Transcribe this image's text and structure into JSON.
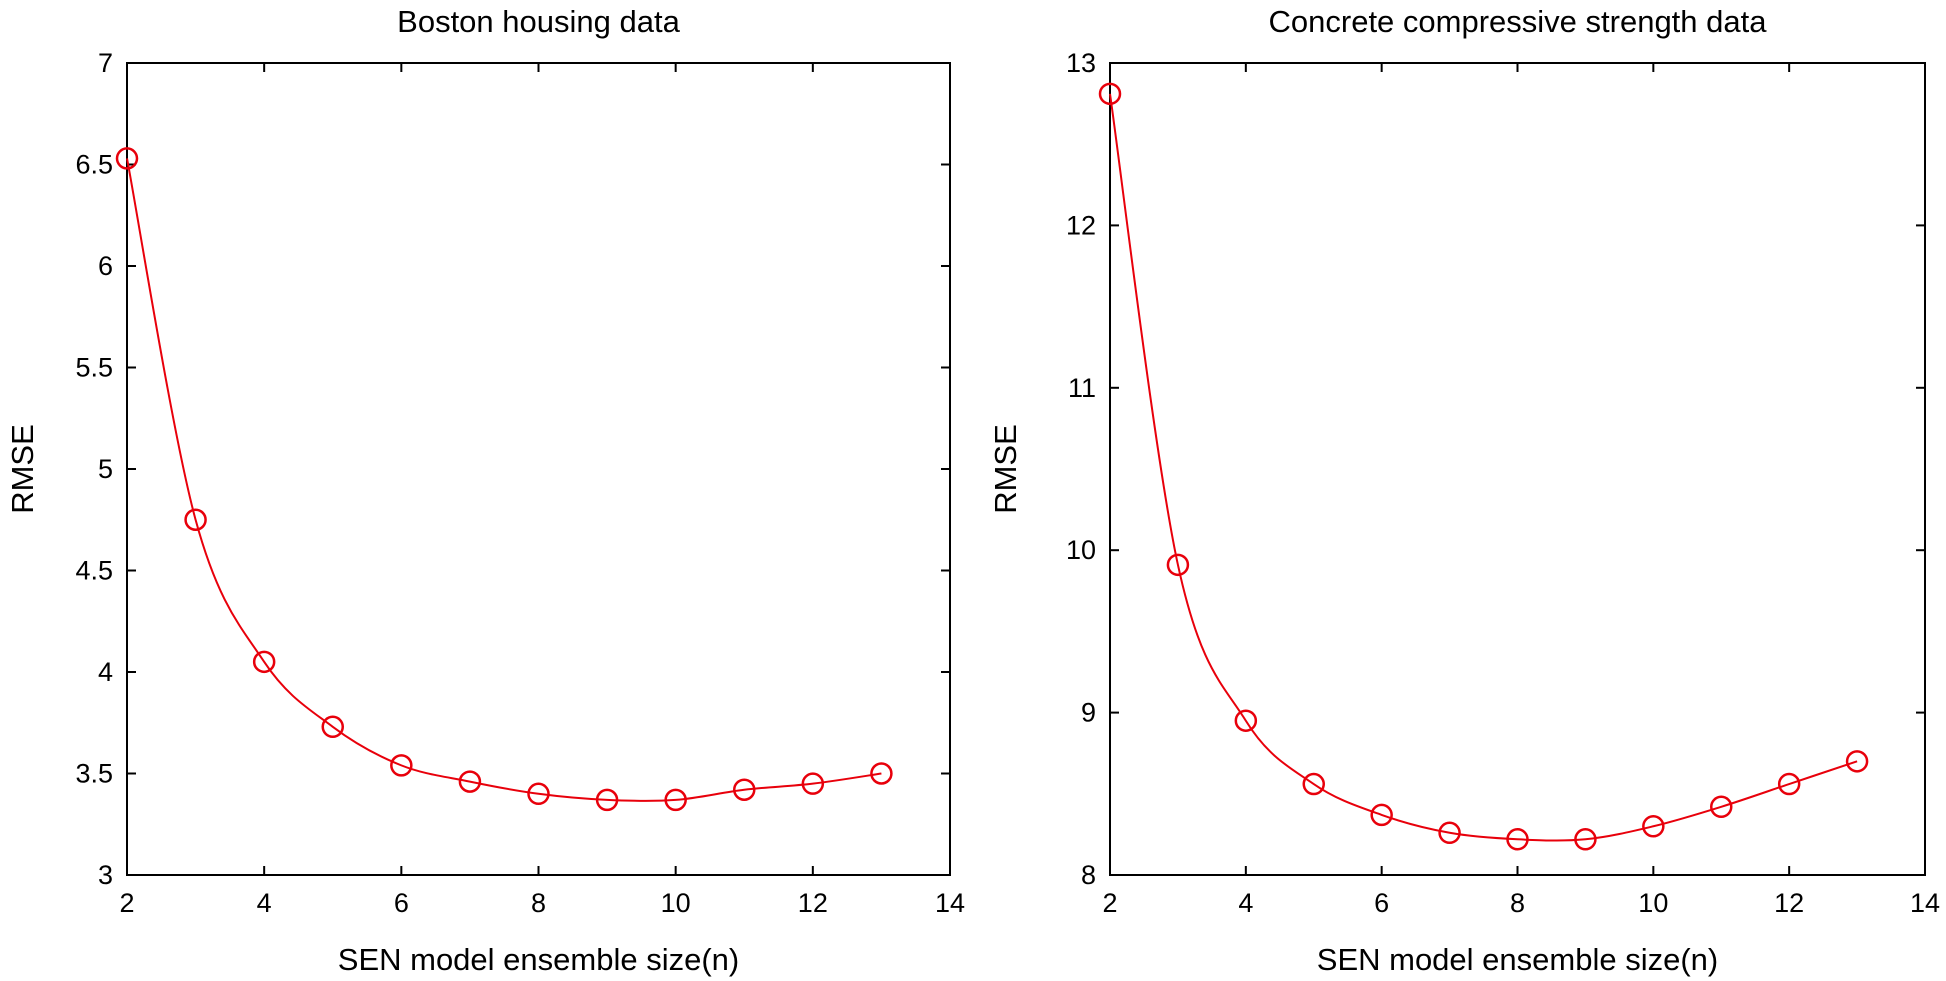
{
  "chart_data": [
    {
      "type": "line",
      "title": "Boston housing data",
      "xlabel": "SEN model ensemble size(n)",
      "ylabel": "RMSE",
      "xlim": [
        2,
        14
      ],
      "ylim": [
        3,
        7
      ],
      "xticks": [
        2,
        4,
        6,
        8,
        10,
        12,
        14
      ],
      "yticks": [
        3,
        3.5,
        4,
        4.5,
        5,
        5.5,
        6,
        6.5,
        7
      ],
      "xtick_labels": [
        "2",
        "4",
        "6",
        "8",
        "10",
        "12",
        "14"
      ],
      "ytick_labels": [
        "3",
        "3.5",
        "4",
        "4.5",
        "5",
        "5.5",
        "6",
        "6.5",
        "7"
      ],
      "grid": false,
      "series": [
        {
          "color": "#e8000b",
          "marker": "circle",
          "x": [
            2,
            3,
            4,
            5,
            6,
            7,
            8,
            9,
            10,
            11,
            12,
            13
          ],
          "y": [
            6.53,
            4.75,
            4.05,
            3.73,
            3.54,
            3.46,
            3.4,
            3.37,
            3.37,
            3.42,
            3.45,
            3.5
          ]
        }
      ]
    },
    {
      "type": "line",
      "title": "Concrete compressive strength data",
      "xlabel": "SEN model ensemble size(n)",
      "ylabel": "RMSE",
      "xlim": [
        2,
        14
      ],
      "ylim": [
        8,
        13
      ],
      "xticks": [
        2,
        4,
        6,
        8,
        10,
        12,
        14
      ],
      "yticks": [
        8,
        9,
        10,
        11,
        12,
        13
      ],
      "xtick_labels": [
        "2",
        "4",
        "6",
        "8",
        "10",
        "12",
        "14"
      ],
      "ytick_labels": [
        "8",
        "9",
        "10",
        "11",
        "12",
        "13"
      ],
      "grid": false,
      "series": [
        {
          "color": "#e8000b",
          "marker": "circle",
          "x": [
            2,
            3,
            4,
            5,
            6,
            7,
            8,
            9,
            10,
            11,
            12,
            13
          ],
          "y": [
            12.81,
            9.91,
            8.95,
            8.56,
            8.37,
            8.26,
            8.22,
            8.22,
            8.3,
            8.42,
            8.56,
            8.7
          ]
        }
      ]
    }
  ]
}
